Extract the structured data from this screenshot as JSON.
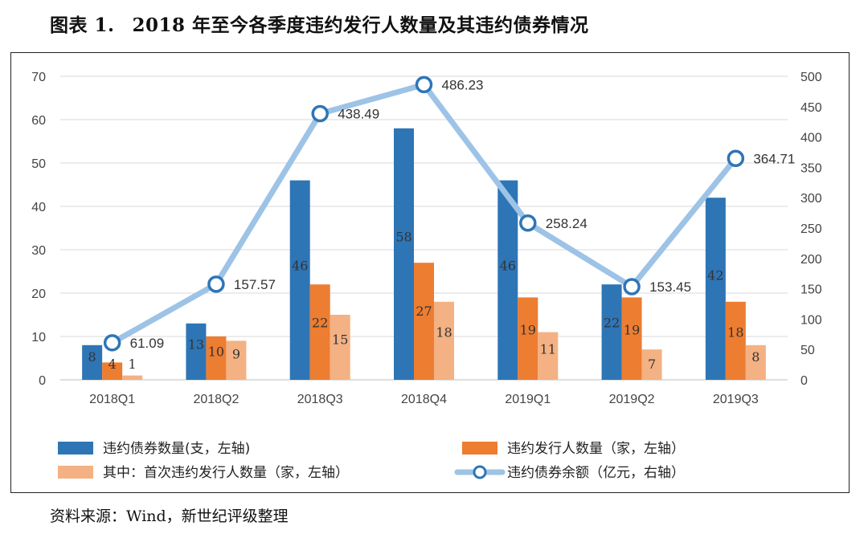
{
  "title": {
    "number": "图表 1.",
    "text": "2018 年至今各季度违约发行人数量及其违约债券情况"
  },
  "source": "资料来源：Wind，新世纪评级整理",
  "chart_data": {
    "type": "bar",
    "categories": [
      "2018Q1",
      "2018Q2",
      "2018Q3",
      "2018Q4",
      "2019Q1",
      "2019Q2",
      "2019Q3"
    ],
    "left_axis": {
      "ylim": [
        0,
        70
      ],
      "ticks": [
        "0",
        "10",
        "20",
        "30",
        "40",
        "50",
        "60",
        "70"
      ]
    },
    "right_axis": {
      "ylim": [
        0,
        500
      ],
      "ticks": [
        "0",
        "50",
        "100",
        "150",
        "200",
        "250",
        "300",
        "350",
        "400",
        "450",
        "500"
      ]
    },
    "grid": true,
    "legend_position": "bottom",
    "series": [
      {
        "name": "违约债券数量(支，左轴)",
        "kind": "bar",
        "axis": "left",
        "color": "#2E75B6",
        "values": [
          8,
          13,
          46,
          58,
          46,
          22,
          42
        ],
        "labels": [
          "8",
          "13",
          "46",
          "58",
          "46",
          "22",
          "42"
        ]
      },
      {
        "name": "违约发行人数量（家，左轴）",
        "kind": "bar",
        "axis": "left",
        "color": "#ED7D31",
        "values": [
          4,
          10,
          22,
          27,
          19,
          19,
          18
        ],
        "labels": [
          "4",
          "10",
          "22",
          "27",
          "19",
          "19",
          "18"
        ]
      },
      {
        "name": "其中：首次违约发行人数量（家，左轴）",
        "kind": "bar",
        "axis": "left",
        "color": "#F4B183",
        "values": [
          1,
          9,
          15,
          18,
          11,
          7,
          8
        ],
        "labels": [
          "1",
          "9",
          "15",
          "18",
          "11",
          "7",
          "8"
        ]
      },
      {
        "name": "违约债券余额（亿元，右轴）",
        "kind": "line",
        "axis": "right",
        "color": "#9DC3E6",
        "values": [
          61.09,
          157.57,
          438.49,
          486.23,
          258.24,
          153.45,
          364.71
        ],
        "labels": [
          "61.09",
          "157.57",
          "438.49",
          "486.23",
          "258.24",
          "153.45",
          "364.71"
        ]
      }
    ]
  }
}
